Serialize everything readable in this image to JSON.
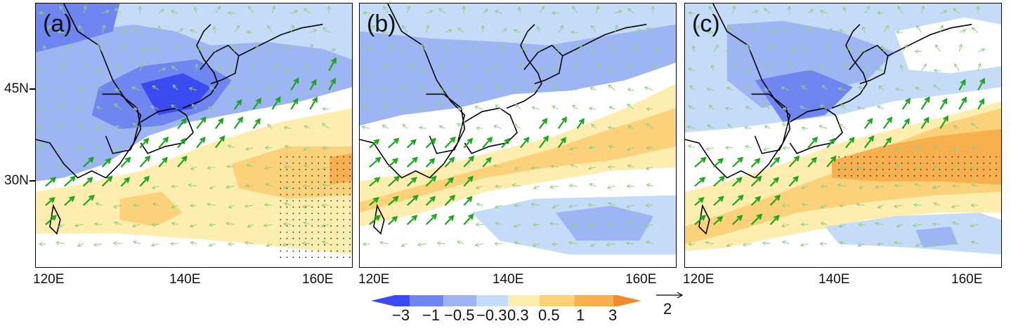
{
  "panels": [
    {
      "tag": "(a)"
    },
    {
      "tag": "(b)"
    },
    {
      "tag": "(c)"
    }
  ],
  "axes": {
    "lat_labels": [
      "45N",
      "30N"
    ],
    "lon_labels": [
      "120E",
      "140E",
      "160E"
    ]
  },
  "colorbar": {
    "labels": [
      "−3",
      "−1",
      "−0.5",
      "−0.3",
      "0.3",
      "0.5",
      "1",
      "3"
    ],
    "colors": [
      "#3b4bf0",
      "#6f85ef",
      "#9db6f3",
      "#c5dcf8",
      "#ffffff",
      "#fdeeb0",
      "#fbd27a",
      "#f7b04d",
      "#f28a2c"
    ]
  },
  "reference_vector": {
    "label": "2"
  },
  "colors": {
    "wind_strong": "#1aa51a",
    "wind_weak": "#8fcf7f",
    "coast": "#000000"
  }
}
